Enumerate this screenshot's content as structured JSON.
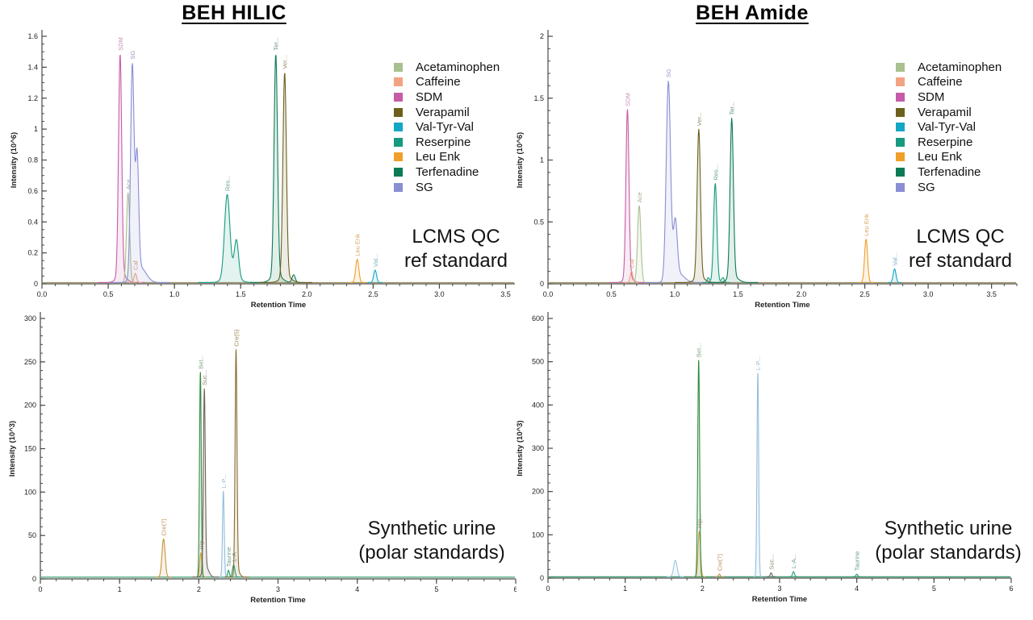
{
  "figure": {
    "background": "#ffffff"
  },
  "legend": {
    "items": [
      {
        "label": "Acetaminophen",
        "color": "#a9c08f"
      },
      {
        "label": "Caffeine",
        "color": "#f2a383"
      },
      {
        "label": "SDM",
        "color": "#c55ca8"
      },
      {
        "label": "Verapamil",
        "color": "#6b611d"
      },
      {
        "label": "Val-Tyr-Val",
        "color": "#12a7c4"
      },
      {
        "label": "Reserpine",
        "color": "#169a7f"
      },
      {
        "label": "Leu Enk",
        "color": "#f09f29"
      },
      {
        "label": "Terfenadine",
        "color": "#0c7a55"
      },
      {
        "label": "SG",
        "color": "#8a8ed2"
      }
    ]
  },
  "chart_data": [
    {
      "id": "beh-hilic-qc",
      "type": "line",
      "title": "BEH HILIC",
      "annotation_lines": [
        "LCMS QC",
        "ref standard"
      ],
      "xlabel": "Retention Time",
      "ylabel": "Intensity (10^6)",
      "xlim": [
        0,
        3.57
      ],
      "ylim": [
        0,
        1.6
      ],
      "xticks": [
        0,
        0.5,
        1,
        1.5,
        2,
        2.5,
        3,
        3.5
      ],
      "xtick_labels": [
        "0.0",
        "0.5",
        "1.0",
        "1.5",
        "2.0",
        "2.5",
        "3.0",
        "3.5"
      ],
      "yticks": [
        0,
        0.2,
        0.4,
        0.6,
        0.8,
        1,
        1.2,
        1.4,
        1.6
      ],
      "ytick_labels": [
        "0",
        "0.2",
        "0.4",
        "0.6",
        "0.8",
        "1",
        "1.2",
        "1.4",
        "1.6"
      ],
      "xminor": 0.1,
      "yminor": 0.05,
      "grid": false,
      "legend_position": "upper-right-inside",
      "baseline": {
        "value": 0.008,
        "color": "#a3986b"
      },
      "peaks": [
        {
          "name": "SDM",
          "label": "SDM",
          "rt": 0.59,
          "intensity": 1.43,
          "color": "#c55ca8",
          "label_color": "#c98fb6",
          "components": [
            [
              0.59,
              1.43,
              0.012
            ],
            [
              0.6,
              0.05,
              0.035
            ]
          ]
        },
        {
          "name": "Ace",
          "label": "Ace",
          "rt": 0.65,
          "intensity": 0.58,
          "color": "#a9c08f",
          "label_color": "#9fae8c",
          "components": [
            [
              0.65,
              0.58,
              0.012
            ]
          ]
        },
        {
          "name": "Caf",
          "label": "Caf",
          "rt": 0.705,
          "intensity": 0.06,
          "color": "#f2a383",
          "label_color": "#d8a07c",
          "components": [
            [
              0.705,
              0.06,
              0.01
            ]
          ]
        },
        {
          "name": "SG",
          "label": "SG",
          "rt": 0.682,
          "intensity": 1.37,
          "color": "#8a8ed2",
          "label_color": "#9297c9",
          "components": [
            [
              0.682,
              1.37,
              0.013
            ],
            [
              0.718,
              0.75,
              0.012
            ],
            [
              0.74,
              0.1,
              0.045
            ]
          ]
        },
        {
          "name": "Res",
          "label": "Res...",
          "rt": 1.398,
          "intensity": 0.53,
          "color": "#169a7f",
          "label_color": "#6aa39b",
          "components": [
            [
              1.398,
              0.53,
              0.02
            ],
            [
              1.468,
              0.24,
              0.016
            ],
            [
              1.43,
              0.05,
              0.05
            ]
          ]
        },
        {
          "name": "Ter",
          "label": "Ter...",
          "rt": 1.765,
          "intensity": 1.43,
          "color": "#0c7a55",
          "label_color": "#5d8f84",
          "components": [
            [
              1.765,
              1.43,
              0.013
            ],
            [
              1.77,
              0.05,
              0.04
            ],
            [
              1.9,
              0.05,
              0.012
            ]
          ]
        },
        {
          "name": "Ver",
          "label": "Ver...",
          "rt": 1.832,
          "intensity": 1.32,
          "color": "#6b611d",
          "label_color": "#97906f",
          "components": [
            [
              1.832,
              1.32,
              0.013
            ],
            [
              1.84,
              0.04,
              0.04
            ]
          ]
        },
        {
          "name": "Leu Enk",
          "label": "Leu Enk",
          "rt": 2.38,
          "intensity": 0.15,
          "color": "#f09f29",
          "label_color": "#d9a258",
          "components": [
            [
              2.38,
              0.15,
              0.012
            ]
          ]
        },
        {
          "name": "Val",
          "label": "Val...",
          "rt": 2.515,
          "intensity": 0.08,
          "color": "#12a7c4",
          "label_color": "#7fb2c9",
          "components": [
            [
              2.515,
              0.08,
              0.011
            ]
          ]
        }
      ]
    },
    {
      "id": "beh-amide-qc",
      "type": "line",
      "title": "BEH Amide",
      "annotation_lines": [
        "LCMS QC",
        "ref standard"
      ],
      "xlabel": "Retention Time",
      "ylabel": "Intensity (10^6)",
      "xlim": [
        0,
        3.7
      ],
      "ylim": [
        0,
        2
      ],
      "xticks": [
        0,
        0.5,
        1,
        1.5,
        2,
        2.5,
        3,
        3.5
      ],
      "xtick_labels": [
        "0.0",
        "0.5",
        "1.0",
        "1.5",
        "2.0",
        "2.5",
        "3.0",
        "3.5"
      ],
      "yticks": [
        0,
        0.5,
        1,
        1.5,
        2
      ],
      "ytick_labels": [
        "0",
        "0.5",
        "1",
        "1.5",
        "2"
      ],
      "xminor": 0.1,
      "yminor": 0.1,
      "grid": false,
      "legend_position": "upper-right-inside",
      "baseline": {
        "value": 0.01,
        "color": "#a3986b"
      },
      "peaks": [
        {
          "name": "SDM",
          "label": "SDM",
          "rt": 0.627,
          "intensity": 1.35,
          "color": "#c55ca8",
          "label_color": "#c98fb6",
          "components": [
            [
              0.627,
              1.35,
              0.012
            ],
            [
              0.635,
              0.05,
              0.03
            ]
          ]
        },
        {
          "name": "Caf",
          "label": "Caf",
          "rt": 0.66,
          "intensity": 0.09,
          "color": "#f2a383",
          "label_color": "#d8a07c",
          "components": [
            [
              0.66,
              0.09,
              0.011
            ]
          ]
        },
        {
          "name": "Ace",
          "label": "Ace",
          "rt": 0.72,
          "intensity": 0.62,
          "color": "#a9c08f",
          "label_color": "#9fae8c",
          "components": [
            [
              0.72,
              0.62,
              0.013
            ]
          ]
        },
        {
          "name": "SG",
          "label": "SG",
          "rt": 0.95,
          "intensity": 1.6,
          "color": "#8a8ed2",
          "label_color": "#9297c9",
          "components": [
            [
              0.95,
              1.6,
              0.017
            ],
            [
              1.005,
              0.44,
              0.015
            ],
            [
              1.02,
              0.08,
              0.05
            ]
          ]
        },
        {
          "name": "Ver",
          "label": "Ver...",
          "rt": 1.19,
          "intensity": 1.2,
          "color": "#6b611d",
          "label_color": "#97906f",
          "components": [
            [
              1.19,
              1.2,
              0.013
            ],
            [
              1.2,
              0.04,
              0.04
            ]
          ]
        },
        {
          "name": "Res",
          "label": "Res...",
          "rt": 1.32,
          "intensity": 0.8,
          "color": "#169a7f",
          "label_color": "#6aa39b",
          "components": [
            [
              1.32,
              0.8,
              0.013
            ],
            [
              1.265,
              0.04,
              0.009
            ],
            [
              1.38,
              0.04,
              0.011
            ]
          ]
        },
        {
          "name": "Ter",
          "label": "Ter...",
          "rt": 1.45,
          "intensity": 1.28,
          "color": "#0c7a55",
          "label_color": "#5d8f84",
          "components": [
            [
              1.45,
              1.28,
              0.013
            ],
            [
              1.46,
              0.05,
              0.04
            ]
          ]
        },
        {
          "name": "Leu Enk",
          "label": "Leu Enk",
          "rt": 2.51,
          "intensity": 0.35,
          "color": "#f09f29",
          "label_color": "#d9a258",
          "components": [
            [
              2.51,
              0.35,
              0.012
            ]
          ]
        },
        {
          "name": "Val",
          "label": "Val...",
          "rt": 2.735,
          "intensity": 0.11,
          "color": "#12a7c4",
          "label_color": "#7fb2c9",
          "components": [
            [
              2.735,
              0.11,
              0.011
            ]
          ]
        }
      ]
    },
    {
      "id": "beh-hilic-urine",
      "type": "line",
      "title": "",
      "annotation_lines": [
        "Synthetic urine",
        "(polar standards)"
      ],
      "xlabel": "Retention Time",
      "ylabel": "Intensity (10^3)",
      "xlim": [
        0,
        6
      ],
      "ylim": [
        0,
        300
      ],
      "xticks": [
        0,
        1,
        2,
        3,
        4,
        5,
        6
      ],
      "xtick_labels": [
        "0",
        "1",
        "2",
        "3",
        "4",
        "5",
        "6"
      ],
      "yticks": [
        0,
        50,
        100,
        150,
        200,
        250,
        300
      ],
      "ytick_labels": [
        "0",
        "50",
        "100",
        "150",
        "200",
        "250",
        "300"
      ],
      "xminor": 0.2,
      "yminor": 10,
      "grid": false,
      "legend_position": "none",
      "baseline": {
        "value": 2,
        "color": "#3b9e74"
      },
      "peaks": [
        {
          "name": "Cre(7)",
          "label": "Cre(7)",
          "rt": 1.555,
          "intensity": 44,
          "color": "#c8923c",
          "label_color": "#bd915c",
          "components": [
            [
              1.555,
              44,
              0.02
            ]
          ]
        },
        {
          "name": "Hip",
          "label": "Hip...",
          "rt": 2.025,
          "intensity": 28,
          "color": "#e2a23e",
          "label_color": "#cf9292",
          "components": [
            [
              2.025,
              28,
              0.013
            ]
          ]
        },
        {
          "name": "Bet",
          "label": "Bet...",
          "rt": 2.02,
          "intensity": 236,
          "color": "#2f8b3f",
          "label_color": "#7fa982",
          "components": [
            [
              2.02,
              236,
              0.011
            ]
          ]
        },
        {
          "name": "Suc",
          "label": "Suc...",
          "rt": 2.07,
          "intensity": 207,
          "color": "#6a6358",
          "label_color": "#8f897d",
          "components": [
            [
              2.07,
              207,
              0.012
            ],
            [
              2.09,
              12,
              0.035
            ]
          ]
        },
        {
          "name": "L-P",
          "label": "L-P...",
          "rt": 2.31,
          "intensity": 99,
          "color": "#92bede",
          "label_color": "#96b8d3",
          "components": [
            [
              2.31,
              99,
              0.011
            ]
          ]
        },
        {
          "name": "Taurine",
          "label": "Taurine",
          "rt": 2.375,
          "intensity": 8,
          "color": "#2f9a63",
          "label_color": "#6ba188",
          "components": [
            [
              2.375,
              8,
              0.011
            ]
          ]
        },
        {
          "name": "L-A",
          "label": "L-A",
          "rt": 2.44,
          "intensity": 14,
          "color": "#2aa274",
          "label_color": "#6ba188",
          "components": [
            [
              2.44,
              14,
              0.016
            ]
          ]
        },
        {
          "name": "Cre(5)",
          "label": "Cre(5)",
          "rt": 2.47,
          "intensity": 255,
          "color": "#8a6c2e",
          "label_color": "#a58a55",
          "components": [
            [
              2.47,
              255,
              0.012
            ],
            [
              2.485,
              8,
              0.03
            ]
          ]
        }
      ]
    },
    {
      "id": "beh-amide-urine",
      "type": "line",
      "title": "",
      "annotation_lines": [
        "Synthetic urine",
        "(polar standards)"
      ],
      "xlabel": "Retention Time",
      "ylabel": "Intensity (10^3)",
      "xlim": [
        0,
        6
      ],
      "ylim": [
        0,
        600
      ],
      "xticks": [
        0,
        1,
        2,
        3,
        4,
        5,
        6
      ],
      "xtick_labels": [
        "0",
        "1",
        "2",
        "3",
        "4",
        "5",
        "6"
      ],
      "yticks": [
        0,
        100,
        200,
        300,
        400,
        500,
        600
      ],
      "ytick_labels": [
        "0",
        "100",
        "200",
        "300",
        "400",
        "500",
        "600"
      ],
      "xminor": 0.2,
      "yminor": 20,
      "grid": false,
      "legend_position": "none",
      "baseline": {
        "value": 3,
        "color": "#3b9e74"
      },
      "peaks": [
        {
          "name": "unlabeled",
          "label": "",
          "rt": 1.65,
          "intensity": 38,
          "color": "#9cc6e2",
          "label_color": "#96b8d3",
          "components": [
            [
              1.65,
              38,
              0.022
            ]
          ]
        },
        {
          "name": "Hip",
          "label": "Hip...",
          "rt": 1.96,
          "intensity": 105,
          "color": "#e2a23e",
          "label_color": "#cf9292",
          "components": [
            [
              1.96,
              105,
              0.016
            ]
          ]
        },
        {
          "name": "Bet",
          "label": "Bet...",
          "rt": 1.952,
          "intensity": 500,
          "color": "#2f8b3f",
          "label_color": "#7fa982",
          "components": [
            [
              1.952,
              500,
              0.012
            ]
          ]
        },
        {
          "name": "Cre(7)",
          "label": "Cre(7)",
          "rt": 2.22,
          "intensity": 6,
          "color": "#c8923c",
          "label_color": "#bd915c",
          "components": [
            [
              2.22,
              6,
              0.012
            ]
          ]
        },
        {
          "name": "L-P",
          "label": "L-P...",
          "rt": 2.718,
          "intensity": 470,
          "color": "#92bede",
          "label_color": "#96b8d3",
          "components": [
            [
              2.718,
              470,
              0.011
            ]
          ]
        },
        {
          "name": "Suc",
          "label": "Suc...",
          "rt": 2.89,
          "intensity": 9,
          "color": "#6a6358",
          "label_color": "#8f897d",
          "components": [
            [
              2.89,
              9,
              0.012
            ]
          ]
        },
        {
          "name": "L-A",
          "label": "L-A...",
          "rt": 3.18,
          "intensity": 12,
          "color": "#2aa274",
          "label_color": "#6ba188",
          "components": [
            [
              3.18,
              12,
              0.013
            ]
          ]
        },
        {
          "name": "Taurine",
          "label": "Taurine",
          "rt": 4.0,
          "intensity": 6,
          "color": "#2f9a63",
          "label_color": "#6ba188",
          "components": [
            [
              4.0,
              6,
              0.012
            ]
          ]
        }
      ]
    }
  ]
}
